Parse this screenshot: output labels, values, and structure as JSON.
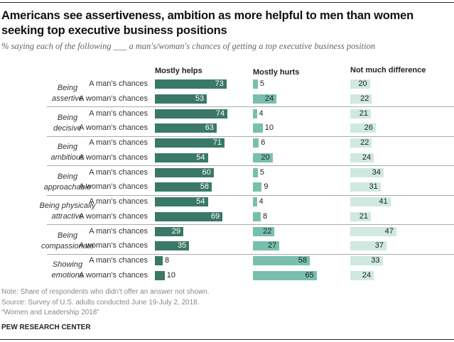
{
  "chart_data": {
    "type": "bar",
    "title": "Americans see assertiveness, ambition as more helpful to men than women seeking top executive business positions",
    "subtitle": "% saying each of the following ___ a man's/woman's chances of getting a top executive business position",
    "columns": [
      "Mostly helps",
      "Mostly hurts",
      "Not much difference"
    ],
    "colors": [
      "#3a7867",
      "#78bfae",
      "#cfe8e2"
    ],
    "groups": [
      {
        "label": [
          "Being",
          "assertive"
        ],
        "rows": [
          {
            "label": "A man's chances",
            "values": [
              73,
              5,
              20
            ]
          },
          {
            "label": "A woman's chances",
            "values": [
              53,
              24,
              22
            ]
          }
        ]
      },
      {
        "label": [
          "Being",
          "decisive"
        ],
        "rows": [
          {
            "label": "A man's chances",
            "values": [
              74,
              4,
              21
            ]
          },
          {
            "label": "A woman's chances",
            "values": [
              63,
              10,
              26
            ]
          }
        ]
      },
      {
        "label": [
          "Being",
          "ambitious"
        ],
        "rows": [
          {
            "label": "A man's chances",
            "values": [
              71,
              6,
              22
            ]
          },
          {
            "label": "A woman's chances",
            "values": [
              54,
              20,
              24
            ]
          }
        ]
      },
      {
        "label": [
          "Being",
          "approachable"
        ],
        "rows": [
          {
            "label": "A man's chances",
            "values": [
              60,
              5,
              34
            ]
          },
          {
            "label": "A woman's chances",
            "values": [
              58,
              9,
              31
            ]
          }
        ]
      },
      {
        "label": [
          "Being physically",
          "attractive"
        ],
        "rows": [
          {
            "label": "A man's chances",
            "values": [
              54,
              4,
              41
            ]
          },
          {
            "label": "A woman's chances",
            "values": [
              69,
              8,
              21
            ]
          }
        ]
      },
      {
        "label": [
          "Being",
          "compassionate"
        ],
        "rows": [
          {
            "label": "A man's chances",
            "values": [
              29,
              22,
              47
            ]
          },
          {
            "label": "A woman's chances",
            "values": [
              35,
              27,
              37
            ]
          }
        ]
      },
      {
        "label": [
          "Showing",
          "emotions"
        ],
        "rows": [
          {
            "label": "A man's chances",
            "values": [
              8,
              58,
              33
            ]
          },
          {
            "label": "A woman's chances",
            "values": [
              10,
              65,
              24
            ]
          }
        ]
      }
    ]
  },
  "notes": [
    "Note: Share of respondents who didn't offer an answer not shown.",
    "Source: Survey of U.S. adults conducted June 19-July 2, 2018.",
    "“Women and Leadership 2018”"
  ],
  "brand": "PEW RESEARCH CENTER"
}
